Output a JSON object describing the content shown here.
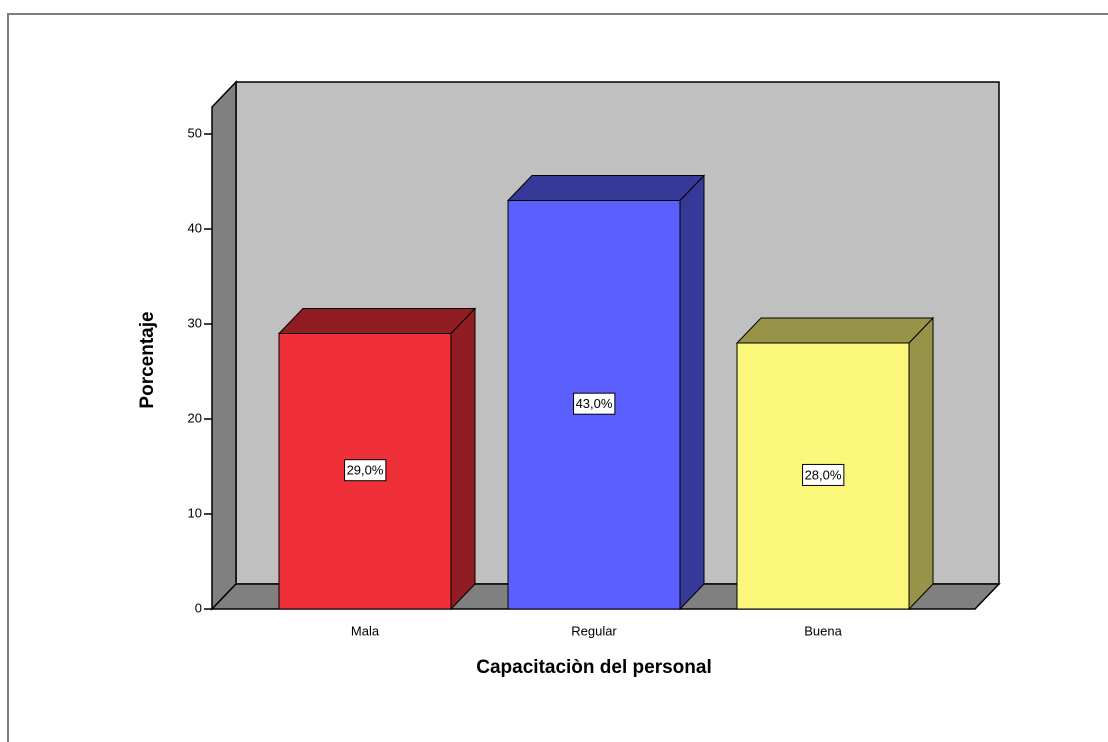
{
  "chart_data": {
    "type": "bar3d",
    "xlabel": "Capacitaciòn del personal",
    "ylabel": "Porcentaje",
    "categories": [
      "Mala",
      "Regular",
      "Buena"
    ],
    "values": [
      29,
      43,
      28
    ],
    "value_labels": [
      "29,0%",
      "43,0%",
      "28,0%"
    ],
    "colors": [
      "#f03039",
      "#5a5ffe",
      "#fbf77b"
    ],
    "ylim": [
      0,
      50
    ],
    "yticks": [
      0,
      10,
      20,
      30,
      40,
      50
    ]
  }
}
